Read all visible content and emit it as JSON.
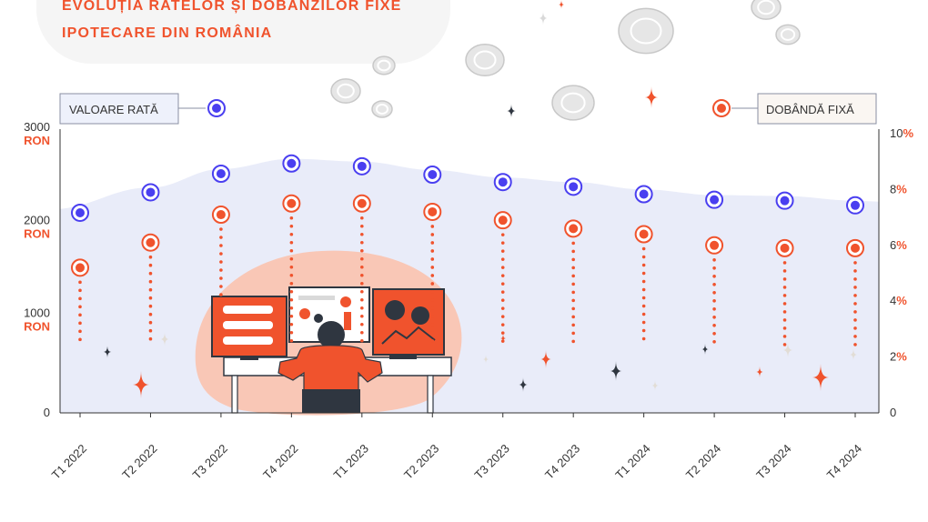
{
  "title": {
    "line1": "EVOLUȚIA RATELOR ȘI DOBÂNZILOR FIXE",
    "line2": "IPOTECARE DIN ROMÂNIA"
  },
  "legend": {
    "left": "VALOARE RATĂ",
    "right": "DOBÂNDĂ FIXĂ"
  },
  "colors": {
    "rate": "#4a3ff0",
    "interest": "#f0532d",
    "area": "#e9ecf9",
    "axis": "#333333",
    "legend_left_bg": "#eef1fb",
    "legend_right_bg": "#faf6f2"
  },
  "chart_data": {
    "type": "line",
    "categories": [
      "T1 2022",
      "T2 2022",
      "T3 2022",
      "T4 2022",
      "T1 2023",
      "T2 2023",
      "T3 2023",
      "T4 2023",
      "T1 2024",
      "T2 2024",
      "T3 2024",
      "T4 2024"
    ],
    "series": [
      {
        "name": "VALOARE RATĂ",
        "axis": "left",
        "values": [
          2150,
          2370,
          2570,
          2680,
          2650,
          2560,
          2480,
          2430,
          2350,
          2290,
          2280,
          2230
        ]
      },
      {
        "name": "DOBÂNDĂ FIXĂ",
        "axis": "right",
        "values": [
          5.2,
          6.1,
          7.1,
          7.5,
          7.5,
          7.2,
          6.9,
          6.6,
          6.4,
          6.0,
          5.9,
          5.9
        ]
      }
    ],
    "left_axis": {
      "ylim": [
        0,
        3000
      ],
      "ticks": [
        {
          "value": 0,
          "num": "0",
          "unit": ""
        },
        {
          "value": 1000,
          "num": "1000",
          "unit": "RON"
        },
        {
          "value": 2000,
          "num": "2000",
          "unit": "RON"
        },
        {
          "value": 3000,
          "num": "3000",
          "unit": "RON"
        }
      ]
    },
    "right_axis": {
      "ylim": [
        0,
        10
      ],
      "ticks": [
        {
          "value": 0,
          "num": "0",
          "unit": ""
        },
        {
          "value": 2,
          "num": "2",
          "unit": "%"
        },
        {
          "value": 4,
          "num": "4",
          "unit": "%"
        },
        {
          "value": 6,
          "num": "6",
          "unit": "%"
        },
        {
          "value": 8,
          "num": "8",
          "unit": "%"
        },
        {
          "value": 10,
          "num": "10",
          "unit": "%"
        }
      ]
    },
    "legend_position": "top"
  }
}
